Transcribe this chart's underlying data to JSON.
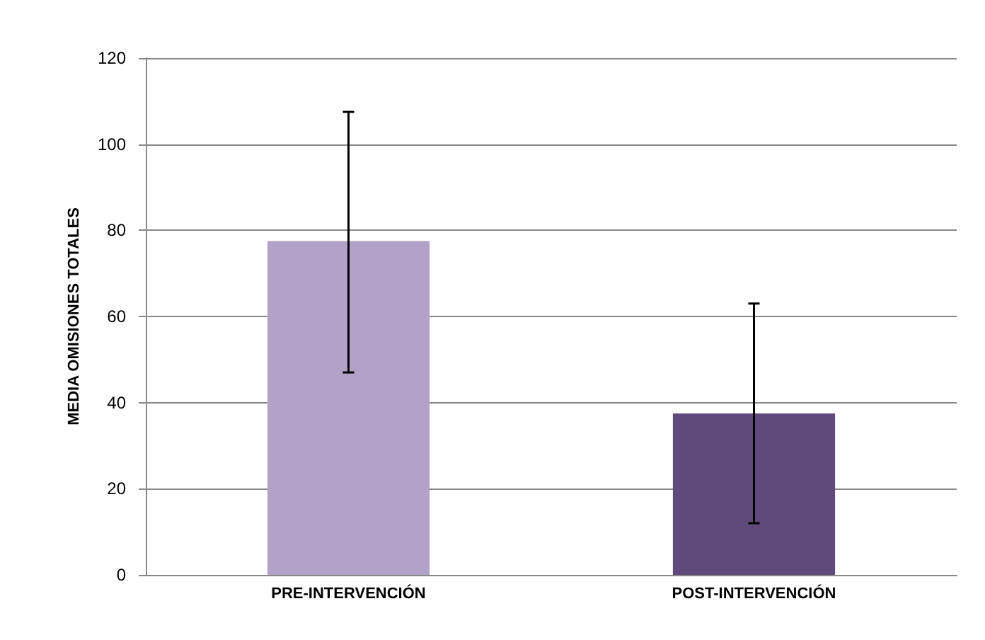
{
  "chart_data": {
    "type": "bar",
    "ylabel": "MEDIA OMISIONES TOTALES",
    "categories": [
      "PRE-INTERVENCIÓN",
      "POST-INTERVENCIÓN"
    ],
    "values": [
      77.5,
      37.5
    ],
    "colors": [
      "#b2a2c7",
      "#604a7b"
    ],
    "errors": [
      [
        47,
        107.5
      ],
      [
        12,
        63
      ]
    ],
    "ylim": [
      0,
      120
    ],
    "yticks": [
      0,
      20,
      40,
      60,
      80,
      100,
      120
    ],
    "grid": "y"
  }
}
